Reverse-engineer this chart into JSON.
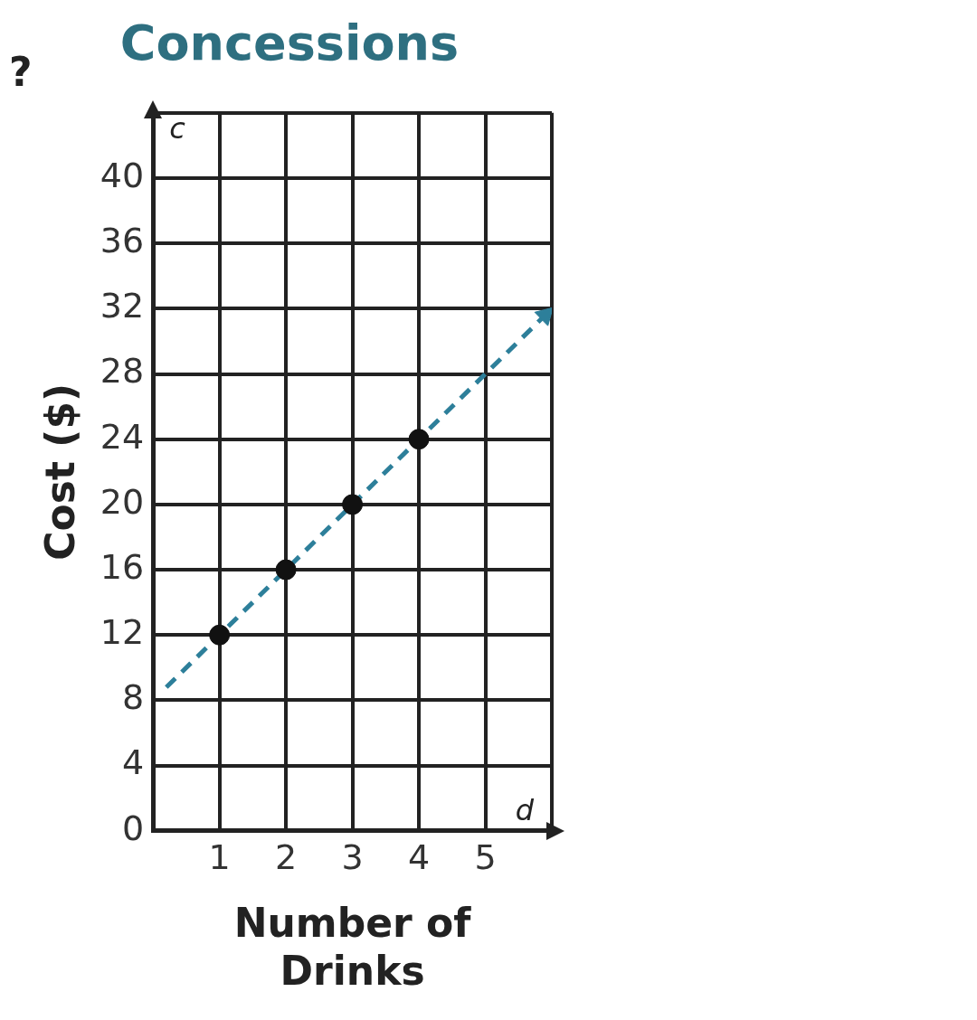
{
  "chart_data": {
    "type": "scatter",
    "title": "Concessions",
    "xlabel": "Number of Drinks",
    "ylabel": "Cost ($)",
    "series": [
      {
        "color": "#111111",
        "x": [
          1,
          2,
          3,
          4
        ],
        "values": [
          12,
          16,
          20,
          24
        ],
        "marker": "circle"
      },
      {
        "type": "line",
        "color": "#2d7f9a",
        "x": [
          0.2,
          5.9
        ],
        "values": [
          8.8,
          31.6
        ],
        "line_style": "dashed"
      }
    ],
    "xlim": [
      0,
      6
    ],
    "ylim": [
      0,
      44
    ],
    "xticks": [
      1,
      2,
      3,
      4,
      5,
      {
        "value": 6,
        "label": null
      }
    ],
    "yticks": [
      0,
      4,
      8,
      12,
      16,
      20,
      24,
      28,
      32,
      36,
      40,
      {
        "value": 44,
        "label": null
      }
    ],
    "grid": true,
    "legend": false,
    "annotations": [
      "?",
      "c",
      "d"
    ]
  }
}
